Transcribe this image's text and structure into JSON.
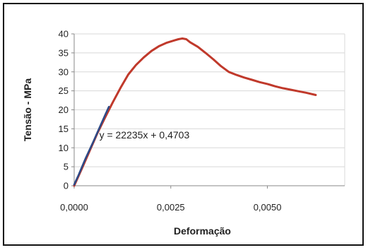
{
  "chart_data": {
    "type": "line",
    "title": "",
    "xlabel": "Deformação",
    "ylabel": "Tensão - MPa",
    "xlim": [
      0,
      0.007
    ],
    "ylim": [
      0,
      40
    ],
    "x_ticks": [
      0,
      0.0025,
      0.005
    ],
    "x_tick_labels": [
      "0,0000",
      "0,0025",
      "0,0050"
    ],
    "y_ticks": [
      0,
      5,
      10,
      15,
      20,
      25,
      30,
      35,
      40
    ],
    "y_tick_labels": [
      "0",
      "5",
      "10",
      "15",
      "20",
      "25",
      "30",
      "35",
      "40"
    ],
    "grid": "horizontal",
    "legend": "none",
    "series": [
      {
        "color": "#c0392b",
        "x": [
          0,
          0.0002,
          0.0004,
          0.0006,
          0.0008,
          0.001,
          0.0012,
          0.0014,
          0.0016,
          0.0018,
          0.002,
          0.0022,
          0.0024,
          0.0026,
          0.0027,
          0.0028,
          0.0029,
          0.003,
          0.0032,
          0.0034,
          0.0036,
          0.0038,
          0.004,
          0.0042,
          0.0044,
          0.0046,
          0.0048,
          0.005,
          0.0052,
          0.0054,
          0.0056,
          0.0058,
          0.006,
          0.00625
        ],
        "y": [
          0,
          4.5,
          9.2,
          13.8,
          18.0,
          22.0,
          25.8,
          29.3,
          31.8,
          33.8,
          35.5,
          36.8,
          37.7,
          38.3,
          38.6,
          38.8,
          38.6,
          37.8,
          36.6,
          35.0,
          33.3,
          31.5,
          30.0,
          29.2,
          28.5,
          27.9,
          27.3,
          26.8,
          26.2,
          25.7,
          25.3,
          24.9,
          24.5,
          23.9
        ]
      },
      {
        "color": "#2e4a86",
        "x": [
          0,
          0.0001,
          0.0002,
          0.0003,
          0.0004,
          0.0005,
          0.0006,
          0.0007,
          0.0008,
          0.0009
        ],
        "y": [
          0.3,
          2.5,
          4.9,
          7.3,
          9.5,
          11.7,
          14.0,
          16.3,
          18.6,
          20.8
        ]
      }
    ],
    "annotations": [
      {
        "text": "y = 22235x + 0,4703",
        "x": 0.00065,
        "y": 12.5
      }
    ]
  }
}
